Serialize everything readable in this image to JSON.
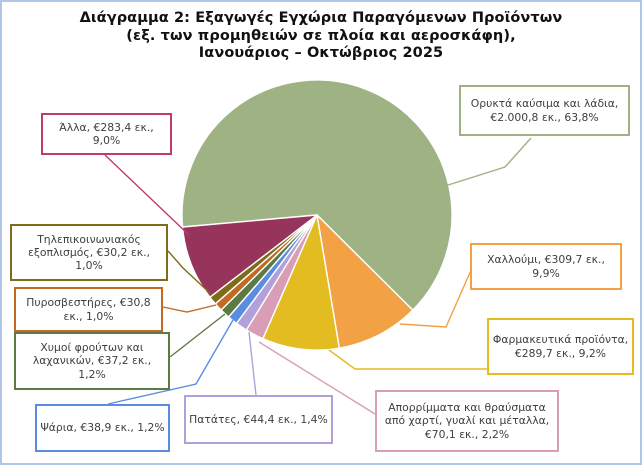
{
  "title": {
    "line1": "Διάγραμμα 2: Εξαγωγές Εγχώρια Παραγόμενων Προϊόντων",
    "line2": "(εξ. των προμηθειών σε πλοία και αεροσκάφη),",
    "line3": "Ιανουάριος – Οκτώβριος 2025"
  },
  "frame_color": "#AFC7E5",
  "text_color": "#3F3F3F",
  "chart_data": {
    "type": "pie",
    "title": "Διάγραμμα 2: Εξαγωγές Εγχώρια Παραγόμενων Προϊόντων (εξ. των προμηθειών σε πλοία και αεροσκάφη), Ιανουάριος – Οκτώβριος 2025",
    "units": "€ εκ.",
    "start_angle_deg_clockwise_from_top": 264.9,
    "slices": [
      {
        "id": "oryktakafsima",
        "label": "Ορυκτά καύσιμα και λάδια",
        "value": "€2.000,8 εκ.",
        "value_num": 2000.8,
        "pct": "63,8%",
        "pct_num": 63.8,
        "color": "#9EB284",
        "text": "Ορυκτά καύσιμα και λάδια, €2.000,8 εκ., 63,8%"
      },
      {
        "id": "xalloumi",
        "label": "Χαλλούμι",
        "value": "€309,7 εκ.",
        "value_num": 309.7,
        "pct": "9,9%",
        "pct_num": 9.9,
        "color": "#F2A144",
        "text": "Χαλλούμι, €309,7 εκ., 9,9%"
      },
      {
        "id": "farmakeutika",
        "label": "Φαρμακευτικά προϊόντα",
        "value": "€289,7 εκ.",
        "value_num": 289.7,
        "pct": "9,2%",
        "pct_num": 9.2,
        "color": "#E3BC22",
        "text": "Φαρμακευτικά προϊόντα, €289,7 εκ., 9,2%"
      },
      {
        "id": "aporrimata",
        "label": "Απορρίμματα και θραύσματα από χαρτί, γυαλί και μέταλλα",
        "value": "€70,1 εκ.",
        "value_num": 70.1,
        "pct": "2,2%",
        "pct_num": 2.2,
        "color": "#D99EB5",
        "text": "Απορρίμματα και θραύσματα από χαρτί, γυαλί και μέταλλα, €70,1 εκ., 2,2%"
      },
      {
        "id": "patates",
        "label": "Πατάτες",
        "value": "€44,4 εκ.",
        "value_num": 44.4,
        "pct": "1,4%",
        "pct_num": 1.4,
        "color": "#B2A0DB",
        "text": "Πατάτες, €44,4 εκ., 1,4%"
      },
      {
        "id": "psaria",
        "label": "Ψάρια",
        "value": "€38,9 εκ.",
        "value_num": 38.9,
        "pct": "1,2%",
        "pct_num": 1.2,
        "color": "#5B8CE0",
        "text": "Ψάρια, €38,9 εκ., 1,2%"
      },
      {
        "id": "xymoi",
        "label": "Χυμοί φρούτων και λαχανικών",
        "value": "€37,2 εκ.",
        "value_num": 37.2,
        "pct": "1,2%",
        "pct_num": 1.2,
        "color": "#5D7A45",
        "text": "Χυμοί φρούτων και λαχανικών, €37,2 εκ., 1,2%"
      },
      {
        "id": "pyrosvestires",
        "label": "Πυροσβεστήρες",
        "value": "€30,8 εκ.",
        "value_num": 30.8,
        "pct": "1,0%",
        "pct_num": 1.0,
        "color": "#C26A23",
        "text": "Πυροσβεστήρες, €30,8 εκ., 1,0%"
      },
      {
        "id": "tilepikoinoniakos",
        "label": "Τηλεπικοινωνιακός εξοπλισμός",
        "value": "€30,2 εκ.",
        "value_num": 30.2,
        "pct": "1,0%",
        "pct_num": 1.0,
        "color": "#7E6C1A",
        "text": "Τηλεπικοινωνιακός εξοπλισμός, €30,2 εκ., 1,0%"
      },
      {
        "id": "alla",
        "label": "Άλλα",
        "value": "€283,4 εκ.",
        "value_num": 283.4,
        "pct": "9,0%",
        "pct_num": 9.0,
        "color": "#97345B",
        "accent": "#C23A67",
        "text": "Άλλα, €283,4 εκ., 9,0%"
      }
    ]
  }
}
